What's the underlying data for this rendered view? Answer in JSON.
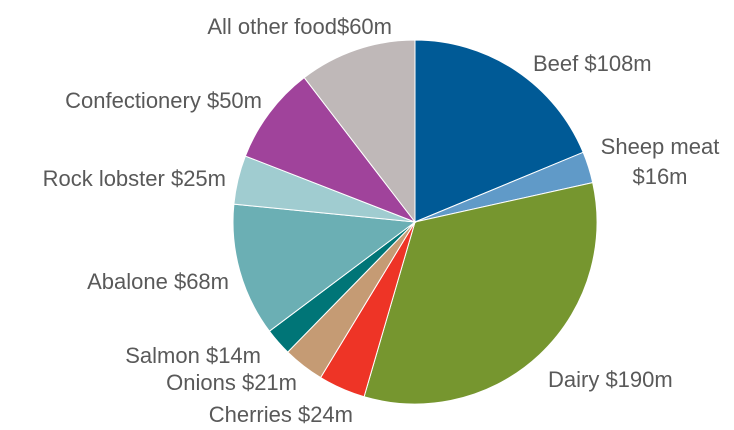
{
  "chart_data": {
    "type": "pie",
    "start_angle_deg": 0,
    "direction": "clockwise",
    "slices": [
      {
        "label": "Beef $108m",
        "lines": [
          "Beef $108m"
        ],
        "value": 108,
        "color": "#005A96"
      },
      {
        "label": "Sheep meat $16m",
        "lines": [
          "Sheep meat",
          "$16m"
        ],
        "value": 16,
        "color": "#609AC8"
      },
      {
        "label": "Dairy $190m",
        "lines": [
          "Dairy $190m"
        ],
        "value": 190,
        "color": "#76962F"
      },
      {
        "label": "Cherries $24m",
        "lines": [
          "Cherries $24m"
        ],
        "value": 24,
        "color": "#EE3426"
      },
      {
        "label": "Onions $21m",
        "lines": [
          "Onions $21m"
        ],
        "value": 21,
        "color": "#C59B74"
      },
      {
        "label": "Salmon $14m",
        "lines": [
          "Salmon $14m"
        ],
        "value": 14,
        "color": "#007577"
      },
      {
        "label": "Abalone $68m",
        "lines": [
          "Abalone $68m"
        ],
        "value": 68,
        "color": "#6BAFB4"
      },
      {
        "label": "Rock lobster $25m",
        "lines": [
          "Rock lobster $25m"
        ],
        "value": 25,
        "color": "#A0CCD0"
      },
      {
        "label": "Confectionery $50m",
        "lines": [
          "Confectionery $50m"
        ],
        "value": 50,
        "color": "#A0439B"
      },
      {
        "label": "All other food$60m",
        "lines": [
          "All other food$60m"
        ],
        "value": 60,
        "color": "#BFB8B8"
      }
    ]
  }
}
